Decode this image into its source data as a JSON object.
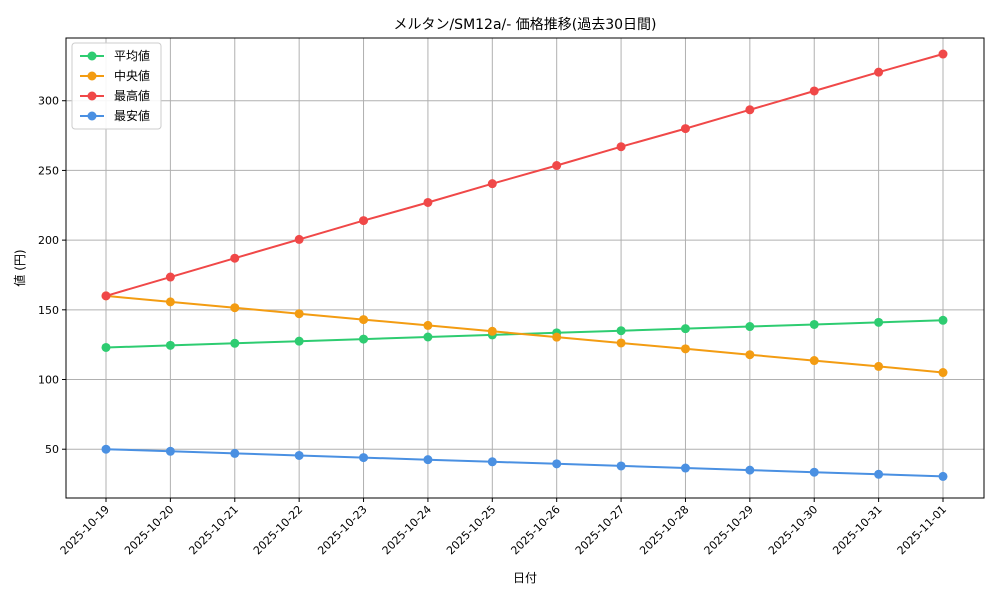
{
  "chart_data": {
    "type": "line",
    "title": "メルタン/SM12a/- 価格推移(過去30日間)",
    "xlabel": "日付",
    "ylabel": "値 (円)",
    "categories": [
      "2025-10-19",
      "2025-10-20",
      "2025-10-21",
      "2025-10-22",
      "2025-10-23",
      "2025-10-24",
      "2025-10-25",
      "2025-10-26",
      "2025-10-27",
      "2025-10-28",
      "2025-10-29",
      "2025-10-30",
      "2025-10-31",
      "2025-11-01"
    ],
    "ylim": [
      15,
      345
    ],
    "yticks": [
      50,
      100,
      150,
      200,
      250,
      300
    ],
    "grid": true,
    "legend_position": "top-left",
    "series": [
      {
        "name": "平均値",
        "color": "#2ecc71",
        "values": [
          123,
          124.5,
          126,
          127.5,
          129,
          130.5,
          132,
          133.5,
          135,
          136.5,
          138,
          139.5,
          141,
          142.5
        ]
      },
      {
        "name": "中央値",
        "color": "#f39c12",
        "values": [
          160,
          155.7,
          151.5,
          147.2,
          143,
          138.8,
          134.6,
          130.4,
          126.2,
          122,
          117.8,
          113.6,
          109.4,
          105
        ]
      },
      {
        "name": "最高値",
        "color": "#f04848",
        "values": [
          160,
          173.5,
          187,
          200.5,
          214,
          227,
          240.5,
          253.5,
          267,
          280,
          293.5,
          307,
          320.5,
          333.5
        ]
      },
      {
        "name": "最安値",
        "color": "#4a90e2",
        "values": [
          50,
          48.5,
          47,
          45.5,
          44,
          42.5,
          41,
          39.5,
          38,
          36.5,
          35,
          33.5,
          32,
          30.5
        ]
      }
    ]
  }
}
